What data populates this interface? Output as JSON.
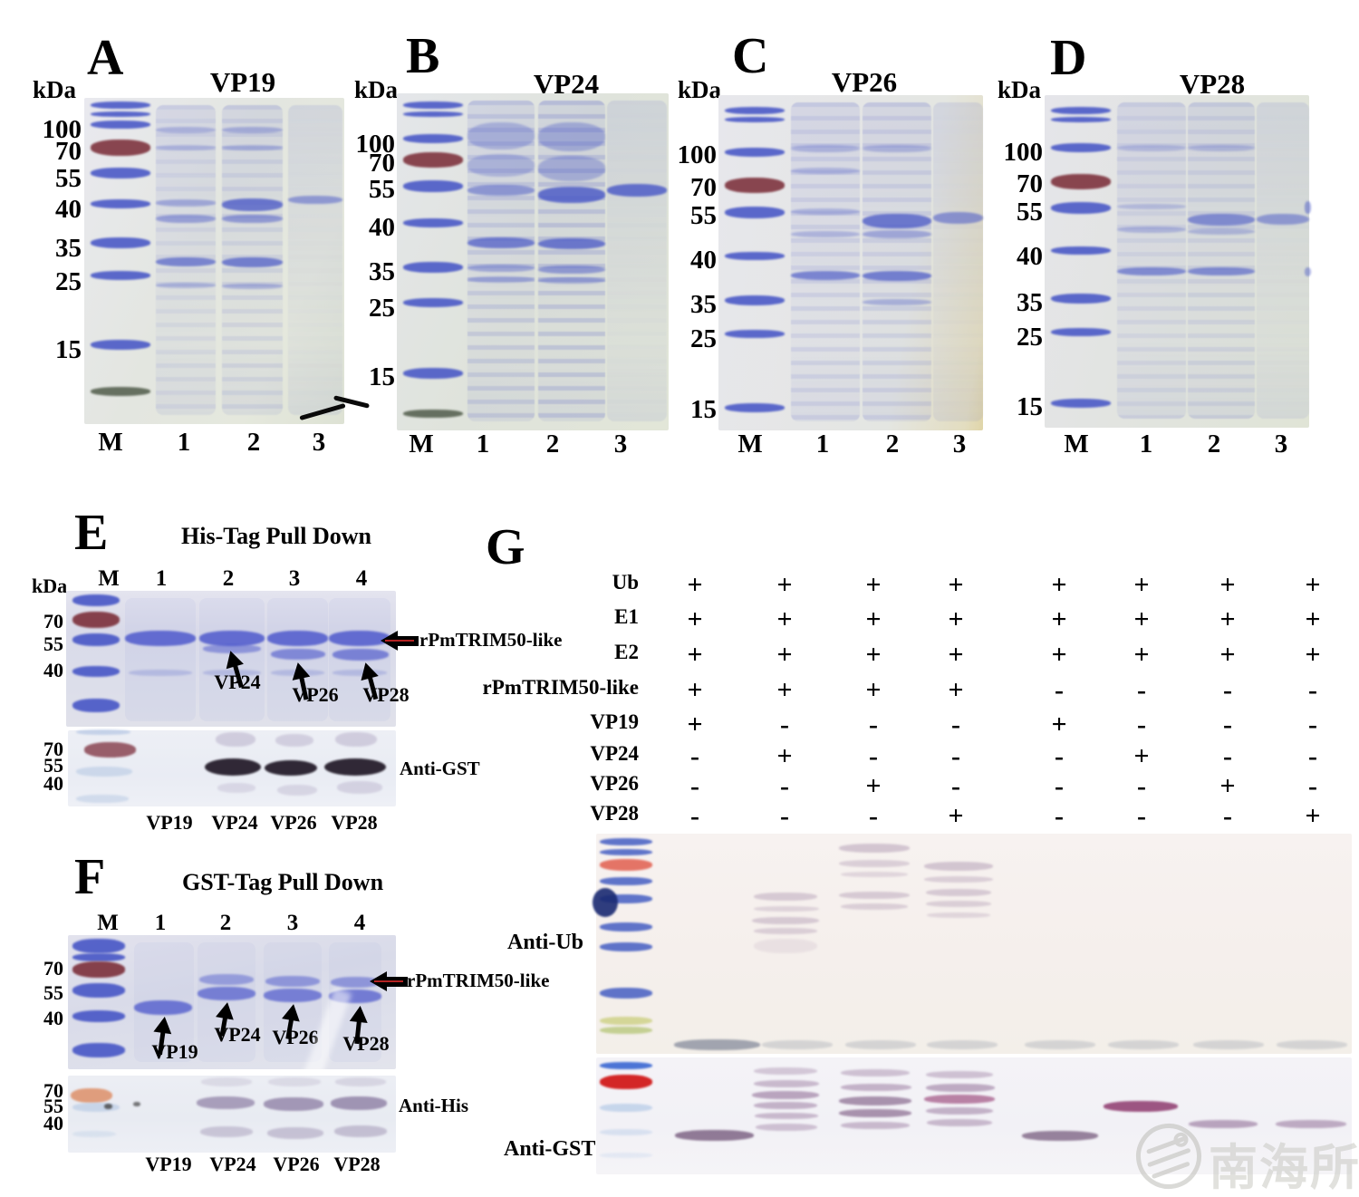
{
  "figure": {
    "panels_abcd": [
      {
        "letter": "A",
        "title": "VP19",
        "kda": "kDa",
        "markers": [
          "100",
          "70",
          "55",
          "40",
          "35",
          "25",
          "15"
        ],
        "lanes": [
          "M",
          "1",
          "2",
          "3"
        ]
      },
      {
        "letter": "B",
        "title": "VP24",
        "kda": "kDa",
        "markers": [
          "100",
          "70",
          "55",
          "40",
          "35",
          "25",
          "15"
        ],
        "lanes": [
          "M",
          "1",
          "2",
          "3"
        ]
      },
      {
        "letter": "C",
        "title": "VP26",
        "kda": "kDa",
        "markers": [
          "100",
          "70",
          "55",
          "40",
          "35",
          "25",
          "15"
        ],
        "lanes": [
          "M",
          "1",
          "2",
          "3"
        ]
      },
      {
        "letter": "D",
        "title": "VP28",
        "kda": "kDa",
        "markers": [
          "100",
          "70",
          "55",
          "40",
          "35",
          "25",
          "15"
        ],
        "lanes": [
          "M",
          "1",
          "2",
          "3"
        ]
      }
    ],
    "panel_e": {
      "letter": "E",
      "title": "His-Tag Pull Down",
      "kda": "kDa",
      "lanes": [
        "M",
        "1",
        "2",
        "3",
        "4"
      ],
      "gel_markers": [
        "70",
        "55",
        "40"
      ],
      "arrow_labels": [
        "VP24",
        "VP26",
        "VP28"
      ],
      "protein_label": "rPmTRIM50-like",
      "blot_markers": [
        "70",
        "55",
        "40"
      ],
      "blot_antibody": "Anti-GST",
      "bottom_labels": [
        "VP19",
        "VP24",
        "VP26",
        "VP28"
      ]
    },
    "panel_f": {
      "letter": "F",
      "title": "GST-Tag Pull Down",
      "lanes": [
        "M",
        "1",
        "2",
        "3",
        "4"
      ],
      "gel_markers": [
        "70",
        "55",
        "40"
      ],
      "arrow_labels": [
        "VP19",
        "VP24",
        "VP26",
        "VP28"
      ],
      "protein_label": "rPmTRIM50-like",
      "blot_markers": [
        "70",
        "55",
        "40"
      ],
      "blot_antibody": "Anti-His",
      "bottom_labels": [
        "VP19",
        "VP24",
        "VP26",
        "VP28"
      ]
    },
    "panel_g": {
      "letter": "G",
      "rows": [
        {
          "label": "Ub",
          "values": [
            "+",
            "+",
            "+",
            "+",
            "+",
            "+",
            "+",
            "+"
          ]
        },
        {
          "label": "E1",
          "values": [
            "+",
            "+",
            "+",
            "+",
            "+",
            "+",
            "+",
            "+"
          ]
        },
        {
          "label": "E2",
          "values": [
            "+",
            "+",
            "+",
            "+",
            "+",
            "+",
            "+",
            "+"
          ]
        },
        {
          "label": "rPmTRIM50-like",
          "values": [
            "+",
            "+",
            "+",
            "+",
            "-",
            "-",
            "-",
            "-"
          ]
        },
        {
          "label": "VP19",
          "values": [
            "+",
            "-",
            "-",
            "-",
            "+",
            "-",
            "-",
            "-"
          ]
        },
        {
          "label": "VP24",
          "values": [
            "-",
            "+",
            "-",
            "-",
            "-",
            "+",
            "-",
            "-"
          ]
        },
        {
          "label": "VP26",
          "values": [
            "-",
            "-",
            "+",
            "-",
            "-",
            "-",
            "+",
            "-"
          ]
        },
        {
          "label": "VP28",
          "values": [
            "-",
            "-",
            "-",
            "+",
            "-",
            "-",
            "-",
            "+"
          ]
        }
      ],
      "blot_ub_label": "Anti-Ub",
      "blot_gst_label": "Anti-GST",
      "watermark": "南海所"
    }
  }
}
